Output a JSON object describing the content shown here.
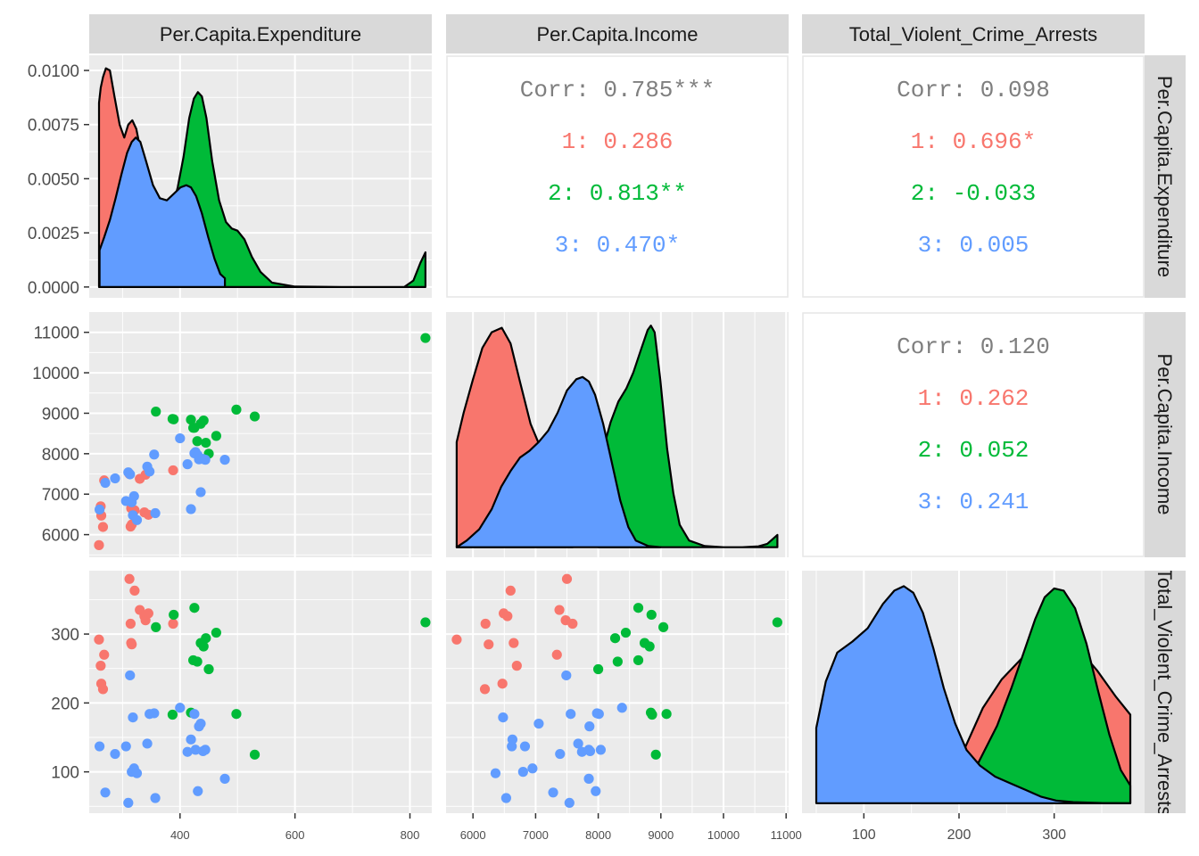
{
  "colors": {
    "panel_bg": "#EBEBEB",
    "grid_major": "#FFFFFF",
    "strip_bg": "#D9D9D9",
    "corr_text": "#7F7F7F",
    "group_1": "#F8766D",
    "group_2": "#00BA38",
    "group_3": "#619CFF"
  },
  "variables": [
    "Per.Capita.Expenditure",
    "Per.Capita.Income",
    "Total_Violent_Crime_Arrests"
  ],
  "chart_data": {
    "type": "scatter",
    "layout": "pairs-matrix",
    "groups": [
      "1",
      "2",
      "3"
    ],
    "axes": {
      "expenditure_x": {
        "ticks": [
          "400",
          "600",
          "800"
        ],
        "range": [
          242,
          838
        ]
      },
      "income_x": {
        "ticks": [
          "6000",
          "7000",
          "8000",
          "9000",
          "10000",
          "11000"
        ],
        "range": [
          5570,
          11040
        ]
      },
      "arrests_x": {
        "ticks": [
          "100",
          "200",
          "300"
        ],
        "range": [
          35,
          395
        ]
      },
      "density_y": {
        "ticks": [
          "0.0000",
          "0.0025",
          "0.0050",
          "0.0075",
          "0.0100"
        ],
        "range": [
          -0.0005,
          0.0107
        ]
      },
      "income_y": {
        "ticks": [
          "6000",
          "7000",
          "8000",
          "9000",
          "10000",
          "11000"
        ],
        "range": [
          5440,
          11500
        ]
      },
      "arrests_y": {
        "ticks": [
          "100",
          "200",
          "300"
        ],
        "range": [
          40,
          392
        ]
      }
    },
    "correlations": {
      "expenditure_income": {
        "overall": "Corr: 0.785***",
        "groups": [
          "1: 0.286",
          "2: 0.813**",
          "3: 0.470*"
        ]
      },
      "expenditure_arrests": {
        "overall": "Corr: 0.098",
        "groups": [
          "1: 0.696*",
          "2: -0.033",
          "3: 0.005"
        ]
      },
      "income_arrests": {
        "overall": "Corr: 0.120",
        "groups": [
          "1: 0.262",
          "2: 0.052",
          "3: 0.241"
        ]
      }
    },
    "points": {
      "1": {
        "expenditure": [
          259,
          262,
          263,
          266,
          268,
          312,
          314,
          315,
          316,
          321,
          330,
          338,
          340,
          345,
          388
        ],
        "income": [
          5740,
          6700,
          6470,
          6190,
          7340,
          7500,
          6200,
          6650,
          6250,
          6600,
          7380,
          6550,
          7480,
          6490,
          7590
        ],
        "arrests": [
          292,
          254,
          228,
          220,
          270,
          380,
          315,
          287,
          285,
          363,
          335,
          326,
          320,
          330,
          315
        ]
      },
      "2": {
        "expenditure": [
          358,
          387,
          389,
          419,
          423,
          425,
          430,
          436,
          441,
          445,
          450,
          463,
          498,
          530,
          827
        ],
        "income": [
          9040,
          8860,
          8850,
          8840,
          8640,
          8640,
          8310,
          8740,
          8820,
          8270,
          8000,
          8440,
          9090,
          8920,
          10860
        ],
        "arrests": [
          310,
          183,
          328,
          186,
          262,
          338,
          260,
          287,
          282,
          294,
          249,
          302,
          184,
          125,
          317
        ]
      },
      "3": {
        "expenditure": [
          260,
          270,
          287,
          306,
          310,
          313,
          316,
          318,
          320,
          325,
          343,
          347,
          355,
          357,
          400,
          413,
          419,
          425,
          427,
          431,
          433,
          436,
          440,
          444,
          478
        ],
        "income": [
          6620,
          7280,
          7390,
          6830,
          7540,
          7490,
          6800,
          6480,
          6950,
          6360,
          7680,
          7560,
          7980,
          6530,
          8380,
          7740,
          6630,
          8010,
          8040,
          7960,
          7860,
          7050,
          7870,
          7850,
          7850
        ],
        "arrests": [
          137,
          70,
          126,
          137,
          55,
          240,
          100,
          179,
          105,
          98,
          141,
          184,
          185,
          62,
          193,
          129,
          147,
          184,
          132,
          72,
          166,
          170,
          130,
          132,
          90
        ]
      }
    },
    "densities": {
      "expenditure": {
        "1": [
          [
            259,
            0.0085
          ],
          [
            262,
            0.0092
          ],
          [
            266,
            0.0097
          ],
          [
            271,
            0.0101
          ],
          [
            278,
            0.01
          ],
          [
            286,
            0.0088
          ],
          [
            295,
            0.0075
          ],
          [
            303,
            0.0069
          ],
          [
            310,
            0.0075
          ],
          [
            317,
            0.0077
          ],
          [
            324,
            0.0073
          ],
          [
            333,
            0.0061
          ],
          [
            342,
            0.0048
          ],
          [
            352,
            0.0035
          ],
          [
            362,
            0.0026
          ],
          [
            372,
            0.0021
          ],
          [
            380,
            0.0018
          ],
          [
            386,
            0.0014
          ],
          [
            388,
            0.0012
          ]
        ],
        "2": [
          [
            358,
            0.0019
          ],
          [
            366,
            0.002
          ],
          [
            376,
            0.0026
          ],
          [
            386,
            0.0036
          ],
          [
            396,
            0.0046
          ],
          [
            406,
            0.006
          ],
          [
            416,
            0.0078
          ],
          [
            424,
            0.0087
          ],
          [
            431,
            0.009
          ],
          [
            438,
            0.0088
          ],
          [
            446,
            0.0078
          ],
          [
            456,
            0.0058
          ],
          [
            468,
            0.004
          ],
          [
            480,
            0.003
          ],
          [
            490,
            0.0027
          ],
          [
            500,
            0.0026
          ],
          [
            512,
            0.0022
          ],
          [
            525,
            0.0014
          ],
          [
            540,
            0.0007
          ],
          [
            560,
            0.0002
          ],
          [
            600,
            2e-05
          ],
          [
            700,
            0.0
          ],
          [
            790,
            0.0
          ],
          [
            806,
            0.0003
          ],
          [
            818,
            0.0011
          ],
          [
            827,
            0.0016
          ]
        ],
        "3": [
          [
            260,
            0.0017
          ],
          [
            268,
            0.0023
          ],
          [
            278,
            0.0031
          ],
          [
            288,
            0.0041
          ],
          [
            298,
            0.0052
          ],
          [
            308,
            0.0062
          ],
          [
            316,
            0.0067
          ],
          [
            323,
            0.0069
          ],
          [
            331,
            0.0067
          ],
          [
            341,
            0.0058
          ],
          [
            353,
            0.0047
          ],
          [
            365,
            0.0041
          ],
          [
            377,
            0.004
          ],
          [
            389,
            0.0043
          ],
          [
            401,
            0.0046
          ],
          [
            411,
            0.0047
          ],
          [
            419,
            0.0046
          ],
          [
            428,
            0.0042
          ],
          [
            438,
            0.0034
          ],
          [
            449,
            0.0023
          ],
          [
            460,
            0.0013
          ],
          [
            470,
            0.0006
          ],
          [
            478,
            0.0004
          ]
        ]
      },
      "income": {
        "1": [
          [
            5740,
            0.47
          ],
          [
            5850,
            0.6
          ],
          [
            6000,
            0.75
          ],
          [
            6150,
            0.89
          ],
          [
            6300,
            0.96
          ],
          [
            6460,
            0.98
          ],
          [
            6600,
            0.91
          ],
          [
            6750,
            0.74
          ],
          [
            6920,
            0.55
          ],
          [
            7100,
            0.43
          ],
          [
            7300,
            0.4
          ],
          [
            7500,
            0.38
          ],
          [
            7590,
            0.37
          ]
        ],
        "2": [
          [
            8000,
            0.37
          ],
          [
            8100,
            0.46
          ],
          [
            8200,
            0.56
          ],
          [
            8320,
            0.65
          ],
          [
            8450,
            0.71
          ],
          [
            8560,
            0.78
          ],
          [
            8680,
            0.88
          ],
          [
            8790,
            0.97
          ],
          [
            8840,
            0.99
          ],
          [
            8900,
            0.96
          ],
          [
            8990,
            0.75
          ],
          [
            9100,
            0.44
          ],
          [
            9200,
            0.24
          ],
          [
            9300,
            0.1
          ],
          [
            9450,
            0.03
          ],
          [
            9700,
            0.005
          ],
          [
            10000,
            0.0
          ],
          [
            10300,
            0.0
          ],
          [
            10560,
            0.004
          ],
          [
            10700,
            0.015
          ],
          [
            10860,
            0.055
          ]
        ],
        "3": [
          [
            5740,
            0.0
          ],
          [
            5900,
            0.03
          ],
          [
            6100,
            0.08
          ],
          [
            6300,
            0.17
          ],
          [
            6450,
            0.27
          ],
          [
            6600,
            0.34
          ],
          [
            6750,
            0.4
          ],
          [
            6900,
            0.43
          ],
          [
            7050,
            0.47
          ],
          [
            7200,
            0.52
          ],
          [
            7350,
            0.6
          ],
          [
            7500,
            0.7
          ],
          [
            7650,
            0.75
          ],
          [
            7750,
            0.76
          ],
          [
            7850,
            0.74
          ],
          [
            7950,
            0.68
          ],
          [
            8080,
            0.55
          ],
          [
            8200,
            0.4
          ],
          [
            8350,
            0.21
          ],
          [
            8480,
            0.09
          ],
          [
            8600,
            0.03
          ],
          [
            8800,
            0.005
          ],
          [
            9000,
            0.0
          ]
        ]
      },
      "arrests": {
        "1": [
          [
            160,
            0.09
          ],
          [
            200,
            0.19
          ],
          [
            225,
            0.43
          ],
          [
            245,
            0.56
          ],
          [
            265,
            0.65
          ],
          [
            285,
            0.72
          ],
          [
            305,
            0.74
          ],
          [
            325,
            0.7
          ],
          [
            345,
            0.6
          ],
          [
            365,
            0.48
          ],
          [
            380,
            0.4
          ]
        ],
        "2": [
          [
            180,
            0.0
          ],
          [
            200,
            0.06
          ],
          [
            220,
            0.18
          ],
          [
            240,
            0.35
          ],
          [
            255,
            0.52
          ],
          [
            268,
            0.68
          ],
          [
            280,
            0.83
          ],
          [
            290,
            0.93
          ],
          [
            300,
            0.97
          ],
          [
            310,
            0.96
          ],
          [
            322,
            0.88
          ],
          [
            334,
            0.72
          ],
          [
            346,
            0.51
          ],
          [
            358,
            0.31
          ],
          [
            370,
            0.15
          ],
          [
            380,
            0.08
          ]
        ],
        "3": [
          [
            50,
            0.34
          ],
          [
            60,
            0.55
          ],
          [
            72,
            0.68
          ],
          [
            88,
            0.73
          ],
          [
            104,
            0.79
          ],
          [
            120,
            0.9
          ],
          [
            132,
            0.96
          ],
          [
            142,
            0.98
          ],
          [
            152,
            0.95
          ],
          [
            162,
            0.86
          ],
          [
            173,
            0.7
          ],
          [
            184,
            0.52
          ],
          [
            196,
            0.36
          ],
          [
            208,
            0.24
          ],
          [
            222,
            0.17
          ],
          [
            238,
            0.12
          ],
          [
            254,
            0.09
          ],
          [
            270,
            0.06
          ],
          [
            286,
            0.03
          ],
          [
            302,
            0.012
          ],
          [
            320,
            0.005
          ],
          [
            350,
            0.001
          ],
          [
            380,
            0.0
          ]
        ]
      }
    }
  }
}
